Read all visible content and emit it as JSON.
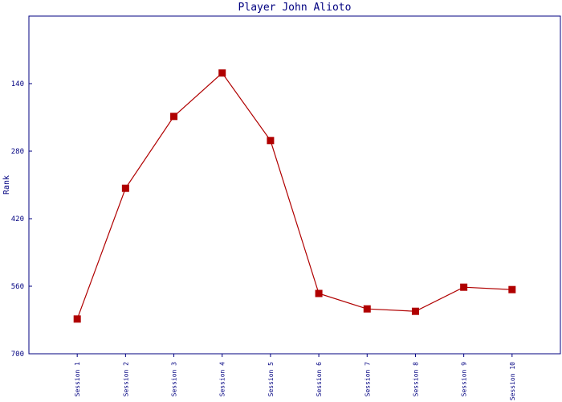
{
  "chart_data": {
    "type": "line",
    "title": "Player John Alioto",
    "y_label": "Rank",
    "categories": [
      "Session 1",
      "Session 2",
      "Session 3",
      "Session 4",
      "Session 5",
      "Session 6",
      "Session 7",
      "Session 8",
      "Session 9",
      "Session 10"
    ],
    "series": [
      {
        "name": "Rank",
        "color": "#b00000",
        "values": [
          628,
          357,
          208,
          118,
          258,
          575,
          607,
          612,
          562,
          567
        ]
      }
    ],
    "ylim": [
      700,
      0
    ],
    "yticks": [
      140,
      280,
      420,
      560,
      700
    ],
    "grid": false
  }
}
